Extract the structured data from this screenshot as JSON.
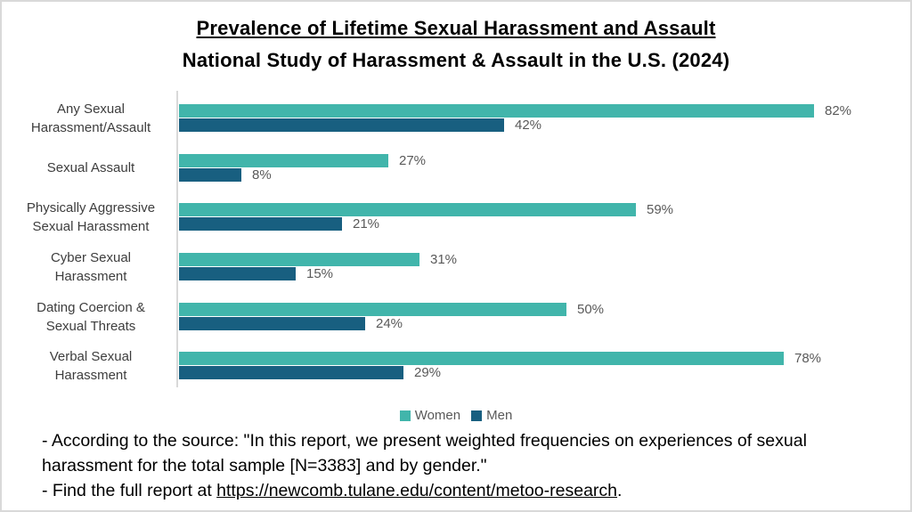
{
  "title": "Prevalence of Lifetime Sexual Harassment and Assault",
  "subtitle": "National Study of Harassment & Assault in the U.S. (2024)",
  "chart_data": {
    "type": "bar",
    "orientation": "horizontal",
    "title": "Prevalence of Lifetime Sexual Harassment and Assault",
    "subtitle": "National Study of Harassment & Assault in the U.S. (2024)",
    "categories": [
      "Any Sexual Harassment/Assault",
      "Sexual Assault",
      "Physically Aggressive Sexual Harassment",
      "Cyber Sexual Harassment",
      "Dating Coercion & Sexual Threats",
      "Verbal Sexual Harassment"
    ],
    "label_lines": [
      [
        "Any Sexual",
        "Harassment/Assault"
      ],
      [
        "Sexual Assault"
      ],
      [
        "Physically Aggressive",
        "Sexual Harassment"
      ],
      [
        "Cyber Sexual",
        "Harassment"
      ],
      [
        "Dating Coercion &",
        "Sexual Threats"
      ],
      [
        "Verbal Sexual",
        "Harassment"
      ]
    ],
    "series": [
      {
        "name": "Women",
        "color": "#41b5ab",
        "values": [
          82,
          27,
          59,
          31,
          50,
          78
        ]
      },
      {
        "name": "Men",
        "color": "#185f80",
        "values": [
          42,
          8,
          21,
          15,
          24,
          29
        ]
      }
    ],
    "value_suffix": "%",
    "xlim": [
      0,
      95
    ],
    "grid": false,
    "legend_position": "bottom",
    "axis_color": "#d9d9d9"
  },
  "legend": {
    "items": [
      {
        "label": "Women",
        "color": "#41b5ab"
      },
      {
        "label": "Men",
        "color": "#185f80"
      }
    ]
  },
  "footer": {
    "note1": "- According to the source: \"In this report, we present weighted frequencies on experiences of sexual harassment for the total sample [N=3383] and by gender.\"",
    "note2_prefix": "- Find the full report at ",
    "link_text": "https://newcomb.tulane.edu/content/metoo-research",
    "note2_suffix": "."
  },
  "colors": {
    "women_bar": "#41b5ab",
    "men_bar": "#185f80",
    "axis": "#d9d9d9",
    "value_text": "#595959",
    "category_text": "#3d3d3d",
    "border": "#d9d9d9"
  }
}
